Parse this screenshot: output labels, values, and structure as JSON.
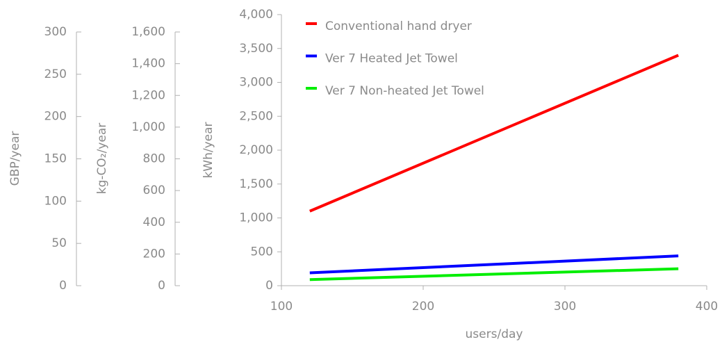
{
  "chart_data": {
    "type": "line",
    "x": [
      120,
      380
    ],
    "series": [
      {
        "name": "Conventional hand dryer",
        "color": "#ff0000",
        "values": [
          1100,
          3400
        ]
      },
      {
        "name": "Ver 7 Heated Jet Towel",
        "color": "#0000ff",
        "values": [
          190,
          440
        ]
      },
      {
        "name": "Ver 7 Non-heated Jet Towel",
        "color": "#00ee00",
        "values": [
          90,
          250
        ]
      }
    ],
    "xlabel": "users/day",
    "xlim": [
      100,
      400
    ],
    "xticks": [
      100,
      200,
      300,
      400
    ],
    "ylabel": "kWh/year",
    "ylim": [
      0,
      4000
    ],
    "yticks": [
      0,
      500,
      {
        "value": 1000,
        "label": "1,000"
      },
      {
        "value": 1500,
        "label": "1,500"
      },
      {
        "value": 2000,
        "label": "2,000"
      },
      {
        "value": 2500,
        "label": "2,500"
      },
      {
        "value": 3000,
        "label": "3,000"
      },
      {
        "value": 3500,
        "label": "3,500"
      },
      {
        "value": 4000,
        "label": "4,000"
      }
    ],
    "y2label": "kg-CO₂/year",
    "y2lim": [
      0,
      1600
    ],
    "y2ticks": [
      0,
      200,
      400,
      600,
      800,
      {
        "value": 1000,
        "label": "1,000"
      },
      {
        "value": 1200,
        "label": "1,200"
      },
      {
        "value": 1400,
        "label": "1,400"
      },
      {
        "value": 1600,
        "label": "1,600"
      }
    ],
    "y3label": "GBP/year",
    "y3lim": [
      0,
      300
    ],
    "y3ticks": [
      0,
      50,
      100,
      150,
      200,
      250,
      300
    ],
    "legend": "upper left"
  }
}
